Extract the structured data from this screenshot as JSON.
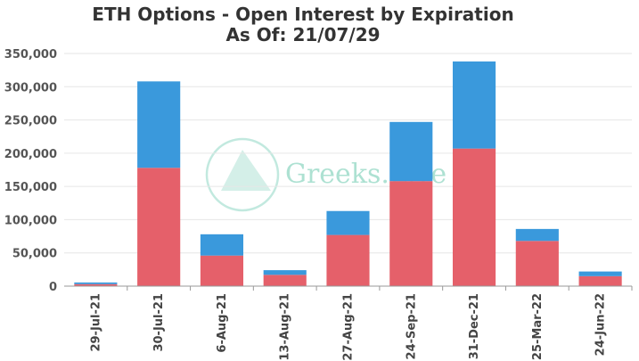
{
  "title": "ETH Options - Open Interest by Expiration",
  "subtitle": "As Of: 21/07/29",
  "watermark": {
    "text": "Greeks.Live",
    "color": "#9fdccb"
  },
  "colors": {
    "series_bottom": "#e5606a",
    "series_top": "#3a99dc",
    "grid": "#e6e6e6",
    "axis": "#999999"
  },
  "chart_data": {
    "type": "bar",
    "stacked": true,
    "title": "ETH Options - Open Interest by Expiration",
    "subtitle": "As Of: 21/07/29",
    "xlabel": "",
    "ylabel": "",
    "ylim": [
      0,
      350000
    ],
    "yticks": [
      0,
      50000,
      100000,
      150000,
      200000,
      250000,
      300000,
      350000
    ],
    "ytick_labels": [
      "0",
      "50,000",
      "100,000",
      "150,000",
      "200,000",
      "250,000",
      "300,000",
      "350,000"
    ],
    "grid": true,
    "legend": "none",
    "categories": [
      "29-Jul-21",
      "30-Jul-21",
      "6-Aug-21",
      "13-Aug-21",
      "27-Aug-21",
      "24-Sep-21",
      "31-Dec-21",
      "25-Mar-22",
      "24-Jun-22"
    ],
    "series": [
      {
        "color": "#e5606a",
        "values": [
          3000,
          178000,
          46000,
          17000,
          77000,
          158000,
          207000,
          68000,
          15000
        ]
      },
      {
        "color": "#3a99dc",
        "values": [
          2500,
          130000,
          32000,
          7000,
          36000,
          89000,
          131000,
          18000,
          7000
        ]
      }
    ]
  }
}
